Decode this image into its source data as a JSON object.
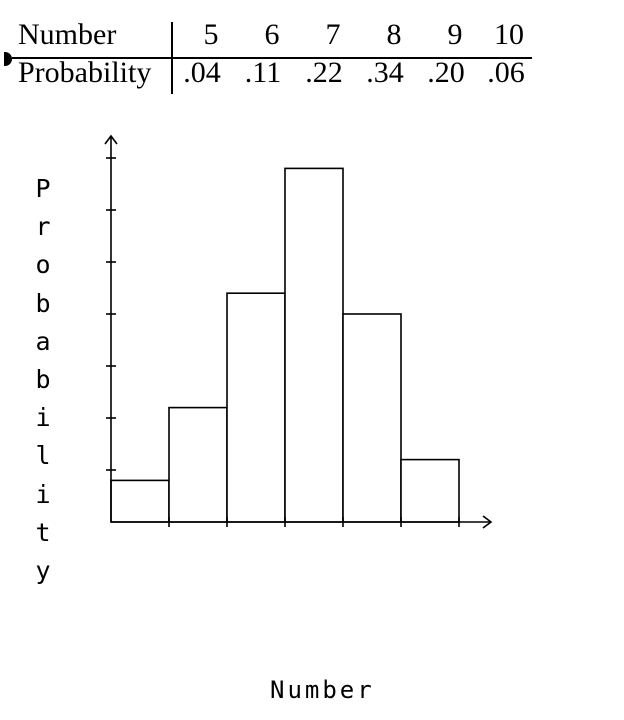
{
  "table": {
    "header_label": "Number",
    "row_label": "Probability",
    "numbers": [
      "5",
      "6",
      "7",
      "8",
      "9",
      "10"
    ],
    "probabilities": [
      ".04",
      ".11",
      ".22",
      ".34",
      ".20",
      ".06"
    ]
  },
  "chart_data": {
    "type": "bar",
    "categories": [
      "5",
      "6",
      "7",
      "8",
      "9",
      "10"
    ],
    "values": [
      0.04,
      0.11,
      0.22,
      0.34,
      0.2,
      0.06
    ],
    "xlabel": "Number",
    "ylabel": "Probability",
    "ylim": [
      0,
      0.35
    ],
    "y_tick_step": 0.05,
    "histogram": true,
    "tick_labels_shown": false,
    "grid": false,
    "bar_fill": "#ffffff",
    "bar_stroke": "#000000"
  }
}
